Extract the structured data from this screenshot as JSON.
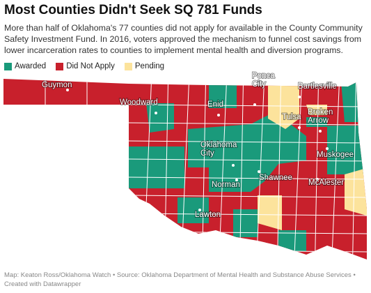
{
  "title": "Most Counties Didn't Seek SQ 781 Funds",
  "subtitle": [
    "More than half of Oklahoma's 77 counties did not apply for available in the County Community",
    "Safety Investment Fund. In 2016, voters approved the mechanism to funnel cost savings from",
    "lower incarceration rates to counties to implement mental health and diversion programs."
  ],
  "legend": [
    {
      "label": "Awarded",
      "color": "#1a9a7b"
    },
    {
      "label": "Did Not Apply",
      "color": "#c8202c"
    },
    {
      "label": "Pending",
      "color": "#fce39c"
    }
  ],
  "cities": [
    {
      "lines": [
        "Guymon"
      ]
    },
    {
      "lines": [
        "Woodward"
      ]
    },
    {
      "lines": [
        "Enid"
      ]
    },
    {
      "lines": [
        "Ponca",
        "City"
      ]
    },
    {
      "lines": [
        "Bartlesville"
      ]
    },
    {
      "lines": [
        "Tulsa"
      ]
    },
    {
      "lines": [
        "Broken",
        "Arrow"
      ]
    },
    {
      "lines": [
        "Oklahoma",
        "City"
      ]
    },
    {
      "lines": [
        "Muskogee"
      ]
    },
    {
      "lines": [
        "Shawnee"
      ]
    },
    {
      "lines": [
        "Norman"
      ]
    },
    {
      "lines": [
        "McAlester"
      ]
    },
    {
      "lines": [
        "Lawton"
      ]
    }
  ],
  "footer": [
    "Map: Keaton Ross/Oklahoma Watch • Source: Oklahoma Department of Mental Health and Substance Abuse Services •",
    "Created with Datawrapper"
  ]
}
